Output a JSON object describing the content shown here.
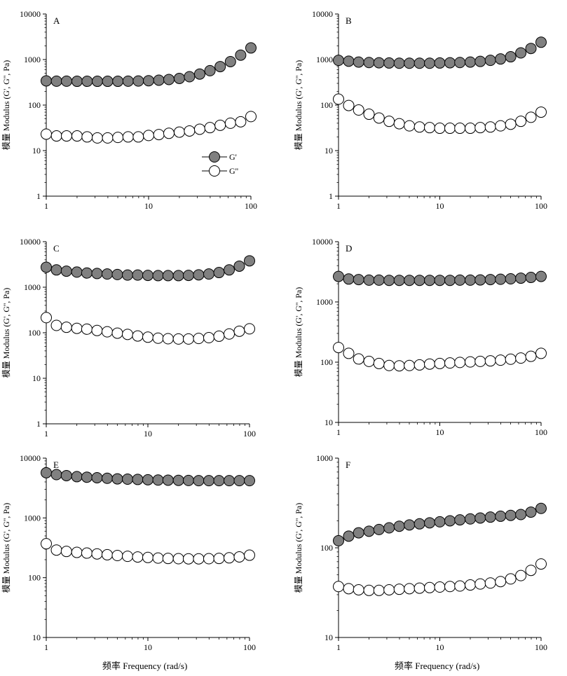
{
  "figure": {
    "x_axis_title": "频率 Frequency (rad/s)",
    "y_axis_title": "模量 Modulus (G', G'', Pa)"
  },
  "legend": {
    "items": [
      {
        "label": "G'",
        "marker": "filled",
        "color": "#808080"
      },
      {
        "label": "G''",
        "marker": "open",
        "color": "#ffffff"
      }
    ]
  },
  "chart_data": [
    {
      "type": "scatter",
      "panel": "A",
      "xscale": "log",
      "yscale": "log",
      "xlim": [
        1,
        100
      ],
      "ylim": [
        1,
        10000
      ],
      "x_ticks": [
        "1",
        "10",
        "100"
      ],
      "y_ticks": [
        "1",
        "10",
        "100",
        "1000",
        "10000"
      ],
      "x": [
        1,
        1.26,
        1.58,
        2,
        2.51,
        3.16,
        3.98,
        5.01,
        6.31,
        7.94,
        10,
        12.6,
        15.8,
        20,
        25.1,
        31.6,
        39.8,
        50.1,
        63.1,
        79.4,
        100
      ],
      "series": [
        {
          "name": "G'",
          "values": [
            340,
            335,
            335,
            333,
            333,
            333,
            333,
            333,
            335,
            338,
            343,
            352,
            365,
            385,
            420,
            480,
            570,
            700,
            900,
            1250,
            1800
          ]
        },
        {
          "name": "G''",
          "values": [
            23,
            21,
            21,
            21,
            20,
            19,
            19,
            19.5,
            20,
            20,
            21.5,
            22.5,
            24,
            25.5,
            27,
            29.5,
            32,
            36,
            40,
            43,
            56
          ]
        }
      ]
    },
    {
      "type": "scatter",
      "panel": "B",
      "xscale": "log",
      "yscale": "log",
      "xlim": [
        1,
        100
      ],
      "ylim": [
        1,
        10000
      ],
      "x_ticks": [
        "1",
        "10",
        "100"
      ],
      "y_ticks": [
        "1",
        "10",
        "100",
        "1000",
        "10000"
      ],
      "x": [
        1,
        1.26,
        1.58,
        2,
        2.51,
        3.16,
        3.98,
        5.01,
        6.31,
        7.94,
        10,
        12.6,
        15.8,
        20,
        25.1,
        31.6,
        39.8,
        50.1,
        63.1,
        79.4,
        100
      ],
      "series": [
        {
          "name": "G'",
          "values": [
            960,
            920,
            880,
            860,
            850,
            840,
            830,
            830,
            830,
            830,
            840,
            850,
            860,
            880,
            910,
            960,
            1030,
            1150,
            1400,
            1750,
            2400
          ]
        },
        {
          "name": "G''",
          "values": [
            135,
            98,
            78,
            63,
            52,
            44,
            39,
            35,
            33,
            32,
            31,
            31,
            31,
            31,
            32,
            33,
            35,
            38,
            44,
            54,
            70
          ]
        }
      ]
    },
    {
      "type": "scatter",
      "panel": "C",
      "xscale": "log",
      "yscale": "log",
      "xlim": [
        1,
        100
      ],
      "ylim": [
        1,
        10000
      ],
      "x_ticks": [
        "1",
        "10",
        "100"
      ],
      "y_ticks": [
        "1",
        "10",
        "100",
        "1000",
        "10000"
      ],
      "x": [
        1,
        1.26,
        1.58,
        2,
        2.51,
        3.16,
        3.98,
        5.01,
        6.31,
        7.94,
        10,
        12.6,
        15.8,
        20,
        25.1,
        31.6,
        39.8,
        50.1,
        63.1,
        79.4,
        100
      ],
      "series": [
        {
          "name": "G'",
          "values": [
            2750,
            2400,
            2250,
            2150,
            2050,
            2000,
            1950,
            1900,
            1850,
            1850,
            1820,
            1800,
            1800,
            1800,
            1820,
            1870,
            1950,
            2100,
            2400,
            2900,
            3800
          ]
        },
        {
          "name": "G''",
          "values": [
            215,
            145,
            132,
            125,
            120,
            112,
            105,
            98,
            92,
            85,
            80,
            76,
            74,
            73,
            73,
            75,
            78,
            84,
            94,
            108,
            122
          ]
        }
      ]
    },
    {
      "type": "scatter",
      "panel": "D",
      "xscale": "log",
      "yscale": "log",
      "xlim": [
        1,
        100
      ],
      "ylim": [
        10,
        10000
      ],
      "x_ticks": [
        "1",
        "10",
        "100"
      ],
      "y_ticks": [
        "10",
        "100",
        "1000",
        "10000"
      ],
      "x": [
        1,
        1.26,
        1.58,
        2,
        2.51,
        3.16,
        3.98,
        5.01,
        6.31,
        7.94,
        10,
        12.6,
        15.8,
        20,
        25.1,
        31.6,
        39.8,
        50.1,
        63.1,
        79.4,
        100
      ],
      "series": [
        {
          "name": "G'",
          "values": [
            2650,
            2400,
            2350,
            2300,
            2300,
            2280,
            2280,
            2280,
            2280,
            2280,
            2280,
            2280,
            2300,
            2300,
            2320,
            2350,
            2380,
            2420,
            2480,
            2550,
            2650
          ]
        },
        {
          "name": "G''",
          "values": [
            175,
            140,
            113,
            103,
            95,
            88,
            87,
            88,
            90,
            93,
            95,
            97,
            99,
            101,
            103,
            105,
            108,
            112,
            117,
            125,
            140
          ]
        }
      ]
    },
    {
      "type": "scatter",
      "panel": "E",
      "xscale": "log",
      "yscale": "log",
      "xlim": [
        1,
        100
      ],
      "ylim": [
        10,
        10000
      ],
      "x_ticks": [
        "1",
        "10",
        "100"
      ],
      "y_ticks": [
        "10",
        "100",
        "1000",
        "10000"
      ],
      "x": [
        1,
        1.26,
        1.58,
        2,
        2.51,
        3.16,
        3.98,
        5.01,
        6.31,
        7.94,
        10,
        12.6,
        15.8,
        20,
        25.1,
        31.6,
        39.8,
        50.1,
        63.1,
        79.4,
        100
      ],
      "series": [
        {
          "name": "G'",
          "values": [
            5700,
            5300,
            5100,
            4900,
            4800,
            4700,
            4600,
            4500,
            4450,
            4400,
            4350,
            4300,
            4280,
            4250,
            4230,
            4200,
            4200,
            4200,
            4200,
            4200,
            4200
          ]
        },
        {
          "name": "G''",
          "values": [
            370,
            290,
            275,
            265,
            258,
            250,
            242,
            235,
            228,
            222,
            218,
            213,
            210,
            208,
            207,
            207,
            208,
            210,
            215,
            223,
            238
          ]
        }
      ]
    },
    {
      "type": "scatter",
      "panel": "F",
      "xscale": "log",
      "yscale": "log",
      "xlim": [
        1,
        100
      ],
      "ylim": [
        10,
        1000
      ],
      "x_ticks": [
        "1",
        "10",
        "100"
      ],
      "y_ticks": [
        "10",
        "100",
        "1000"
      ],
      "x": [
        1,
        1.26,
        1.58,
        2,
        2.51,
        3.16,
        3.98,
        5.01,
        6.31,
        7.94,
        10,
        12.6,
        15.8,
        20,
        25.1,
        31.6,
        39.8,
        50.1,
        63.1,
        79.4,
        100
      ],
      "series": [
        {
          "name": "G'",
          "values": [
            120,
            135,
            147,
            153,
            160,
            167,
            174,
            180,
            185,
            190,
            195,
            200,
            205,
            210,
            215,
            220,
            225,
            230,
            235,
            250,
            275
          ]
        },
        {
          "name": "G''",
          "values": [
            37,
            35,
            34,
            33.5,
            33.5,
            34,
            34.5,
            35,
            35.5,
            36,
            36.5,
            37,
            37.5,
            38.5,
            39.5,
            40.5,
            42,
            45,
            49,
            56,
            66
          ]
        }
      ]
    }
  ]
}
